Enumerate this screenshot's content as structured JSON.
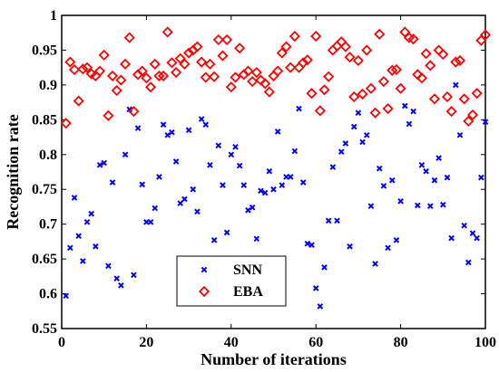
{
  "chart_data": {
    "type": "scatter",
    "xlabel": "Number of iterations",
    "ylabel": "Recognition rate",
    "xlim": [
      0,
      100
    ],
    "ylim": [
      0.55,
      1.0
    ],
    "x_ticks": [
      "0",
      "20",
      "40",
      "60",
      "80",
      "100"
    ],
    "y_ticks": [
      "0.55",
      "0.6",
      "0.65",
      "0.7",
      "0.75",
      "0.8",
      "0.85",
      "0.9",
      "0.95",
      "1"
    ],
    "grid": false,
    "legend_position": "bottom-left-center",
    "series": [
      {
        "name": "SNN",
        "marker": "x",
        "color": "#0000ff",
        "x": [
          1,
          2,
          3,
          4,
          5,
          6,
          7,
          8,
          9,
          10,
          11,
          12,
          13,
          14,
          15,
          16,
          17,
          18,
          19,
          20,
          21,
          22,
          23,
          24,
          25,
          26,
          27,
          28,
          29,
          30,
          31,
          32,
          33,
          34,
          35,
          36,
          37,
          38,
          39,
          40,
          41,
          42,
          43,
          44,
          45,
          46,
          47,
          48,
          49,
          50,
          51,
          52,
          53,
          54,
          55,
          56,
          57,
          58,
          59,
          60,
          61,
          62,
          63,
          64,
          65,
          66,
          67,
          68,
          69,
          70,
          71,
          72,
          73,
          74,
          75,
          76,
          77,
          78,
          79,
          80,
          81,
          82,
          83,
          84,
          85,
          86,
          87,
          88,
          89,
          90,
          91,
          92,
          93,
          94,
          95,
          96,
          97,
          98,
          99,
          100
        ],
        "y": [
          0.597,
          0.666,
          0.738,
          0.683,
          0.647,
          0.703,
          0.715,
          0.668,
          0.785,
          0.788,
          0.64,
          0.76,
          0.622,
          0.612,
          0.8,
          0.865,
          0.627,
          0.838,
          0.757,
          0.703,
          0.703,
          0.723,
          0.768,
          0.843,
          0.828,
          0.832,
          0.79,
          0.73,
          0.736,
          0.835,
          0.75,
          0.718,
          0.851,
          0.843,
          0.785,
          0.677,
          0.813,
          0.756,
          0.688,
          0.8,
          0.811,
          0.784,
          0.756,
          0.72,
          0.724,
          0.679,
          0.748,
          0.745,
          0.776,
          0.75,
          0.833,
          0.756,
          0.768,
          0.768,
          0.805,
          0.866,
          0.76,
          0.672,
          0.67,
          0.608,
          0.582,
          0.638,
          0.705,
          0.782,
          0.705,
          0.804,
          0.816,
          0.668,
          0.84,
          0.86,
          0.818,
          0.828,
          0.726,
          0.643,
          0.78,
          0.755,
          0.666,
          0.763,
          0.677,
          0.733,
          0.87,
          0.844,
          0.862,
          0.727,
          0.785,
          0.776,
          0.726,
          0.763,
          0.795,
          0.728,
          0.767,
          0.68,
          0.9,
          0.828,
          0.698,
          0.645,
          0.687,
          0.68,
          0.767,
          0.847
        ]
      },
      {
        "name": "EBA",
        "marker": "diamond",
        "color": "#ff0000",
        "x": [
          1,
          2,
          3,
          4,
          5,
          6,
          7,
          8,
          9,
          10,
          11,
          12,
          13,
          14,
          15,
          16,
          17,
          18,
          19,
          20,
          21,
          22,
          23,
          24,
          25,
          26,
          27,
          28,
          29,
          30,
          31,
          32,
          33,
          34,
          35,
          36,
          37,
          38,
          39,
          40,
          41,
          42,
          43,
          44,
          45,
          46,
          47,
          48,
          49,
          50,
          51,
          52,
          53,
          54,
          55,
          56,
          57,
          58,
          59,
          60,
          61,
          62,
          63,
          64,
          65,
          66,
          67,
          68,
          69,
          70,
          71,
          72,
          73,
          74,
          75,
          76,
          77,
          78,
          79,
          80,
          81,
          82,
          83,
          84,
          85,
          86,
          87,
          88,
          89,
          90,
          91,
          92,
          93,
          94,
          95,
          96,
          97,
          98,
          99,
          100
        ],
        "y": [
          0.845,
          0.933,
          0.922,
          0.877,
          0.923,
          0.925,
          0.916,
          0.913,
          0.92,
          0.943,
          0.856,
          0.913,
          0.892,
          0.907,
          0.93,
          0.968,
          0.862,
          0.915,
          0.92,
          0.91,
          0.897,
          0.93,
          0.913,
          0.913,
          0.976,
          0.932,
          0.918,
          0.938,
          0.93,
          0.946,
          0.95,
          0.955,
          0.933,
          0.911,
          0.93,
          0.912,
          0.965,
          0.942,
          0.965,
          0.897,
          0.911,
          0.953,
          0.915,
          0.92,
          0.905,
          0.918,
          0.907,
          0.902,
          0.89,
          0.913,
          0.92,
          0.946,
          0.955,
          0.925,
          0.97,
          0.925,
          0.932,
          0.936,
          0.888,
          0.97,
          0.863,
          0.893,
          0.912,
          0.95,
          0.956,
          0.962,
          0.955,
          0.94,
          0.883,
          0.935,
          0.887,
          0.95,
          0.895,
          0.86,
          0.973,
          0.905,
          0.866,
          0.921,
          0.922,
          0.895,
          0.976,
          0.968,
          0.966,
          0.915,
          0.91,
          0.945,
          0.928,
          0.88,
          0.95,
          0.944,
          0.883,
          0.862,
          0.933,
          0.935,
          0.88,
          0.848,
          0.857,
          0.888,
          0.964,
          0.972
        ]
      }
    ]
  }
}
